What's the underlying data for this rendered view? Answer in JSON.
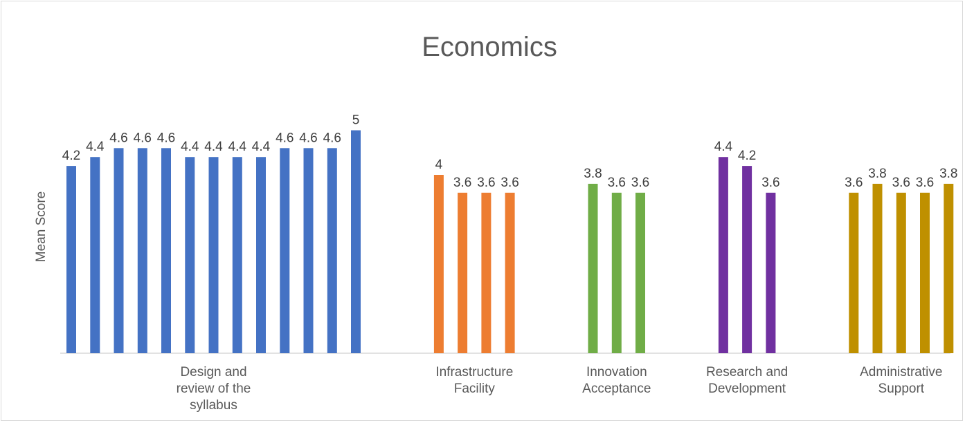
{
  "chart_data": {
    "type": "bar",
    "title": "Economics",
    "ylabel": "Mean Score",
    "xlabel": "",
    "ylim": [
      0,
      5
    ],
    "grid": false,
    "legend": "none",
    "groups": [
      {
        "category": "Design and review of the syllabus",
        "category_lines": [
          "Design and",
          "review of the",
          "syllabus"
        ],
        "color": "#4472C4",
        "values": [
          4.2,
          4.4,
          4.6,
          4.6,
          4.6,
          4.4,
          4.4,
          4.4,
          4.4,
          4.6,
          4.6,
          4.6,
          5
        ]
      },
      {
        "category": "Infrastructure Facility",
        "category_lines": [
          "Infrastructure",
          "Facility"
        ],
        "color": "#ED7D31",
        "values": [
          4,
          3.6,
          3.6,
          3.6
        ]
      },
      {
        "category": "Innovation Acceptance",
        "category_lines": [
          "Innovation",
          "Acceptance"
        ],
        "color": "#70AD47",
        "values": [
          3.8,
          3.6,
          3.6
        ]
      },
      {
        "category": "Research and Development",
        "category_lines": [
          "Research and",
          "Development"
        ],
        "color": "#7030A0",
        "values": [
          4.4,
          4.2,
          3.6
        ]
      },
      {
        "category": "Administrative Support",
        "category_lines": [
          "Administrative",
          "Support"
        ],
        "color": "#BF9000",
        "values": [
          3.6,
          3.8,
          3.6,
          3.6,
          3.8
        ]
      }
    ]
  }
}
